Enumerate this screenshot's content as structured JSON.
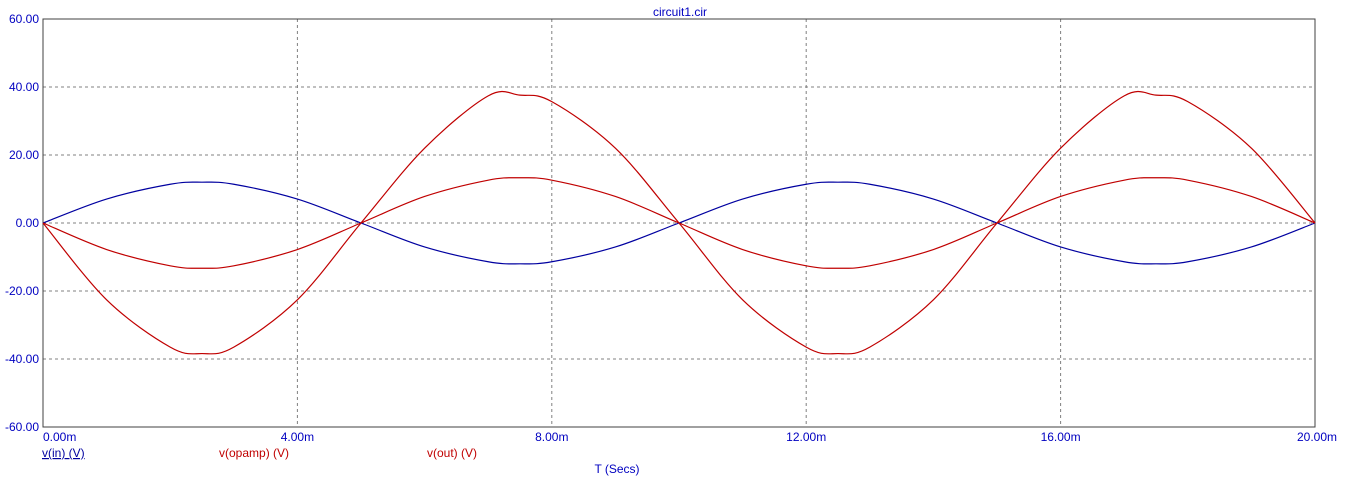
{
  "chart_data": {
    "type": "line",
    "title": "circuit1.cir",
    "xlabel": "T (Secs)",
    "ylabel": "",
    "xlim": [
      0,
      0.02
    ],
    "ylim": [
      -60,
      60
    ],
    "grid": true,
    "x_ticks": [
      "0.00m",
      "4.00m",
      "8.00m",
      "12.00m",
      "16.00m",
      "20.00m"
    ],
    "y_ticks": [
      "60.00",
      "40.00",
      "20.00",
      "0.00",
      "-20.00",
      "-40.00",
      "-60.00"
    ],
    "legend_placement": "bottom-left",
    "series": [
      {
        "name": "v(in) (V)",
        "color": "#0000a0",
        "x": [
          0,
          0.001,
          0.002,
          0.0025,
          0.003,
          0.004,
          0.005,
          0.006,
          0.007,
          0.0075,
          0.008,
          0.009,
          0.01,
          0.011,
          0.012,
          0.0125,
          0.013,
          0.014,
          0.015,
          0.016,
          0.017,
          0.0175,
          0.018,
          0.019,
          0.02
        ],
        "values": [
          0,
          7.05,
          11.4,
          12.0,
          11.4,
          7.05,
          0,
          -7.05,
          -11.4,
          -12.0,
          -11.4,
          -7.05,
          0,
          7.05,
          11.4,
          12.0,
          11.4,
          7.05,
          0,
          -7.05,
          -11.4,
          -12.0,
          -11.4,
          -7.05,
          0
        ]
      },
      {
        "name": "v(opamp) (V)",
        "color": "#c00000",
        "x": [
          0,
          0.001,
          0.002,
          0.0025,
          0.003,
          0.004,
          0.005,
          0.006,
          0.007,
          0.0075,
          0.008,
          0.009,
          0.01,
          0.011,
          0.012,
          0.0125,
          0.013,
          0.014,
          0.015,
          0.016,
          0.017,
          0.0175,
          0.018,
          0.019,
          0.02
        ],
        "values": [
          0,
          -22.6,
          -36.5,
          -38.4,
          -36.5,
          -22.6,
          0,
          22.0,
          37.4,
          37.6,
          35.7,
          22.0,
          0,
          -22.6,
          -36.5,
          -38.4,
          -36.5,
          -22.6,
          0,
          22.0,
          37.4,
          37.6,
          35.7,
          22.0,
          0
        ]
      },
      {
        "name": "v(out) (V)",
        "color": "#c00000",
        "x": [
          0,
          0.001,
          0.002,
          0.0025,
          0.003,
          0.004,
          0.005,
          0.006,
          0.007,
          0.0075,
          0.008,
          0.009,
          0.01,
          0.011,
          0.012,
          0.0125,
          0.013,
          0.014,
          0.015,
          0.016,
          0.017,
          0.0175,
          0.018,
          0.019,
          0.02
        ],
        "values": [
          0,
          -7.8,
          -12.6,
          -13.3,
          -12.6,
          -7.8,
          0,
          7.8,
          12.6,
          13.3,
          12.6,
          7.8,
          0,
          -7.8,
          -12.6,
          -13.3,
          -12.6,
          -7.8,
          0,
          7.8,
          12.6,
          13.3,
          12.6,
          7.8,
          0
        ]
      }
    ]
  }
}
